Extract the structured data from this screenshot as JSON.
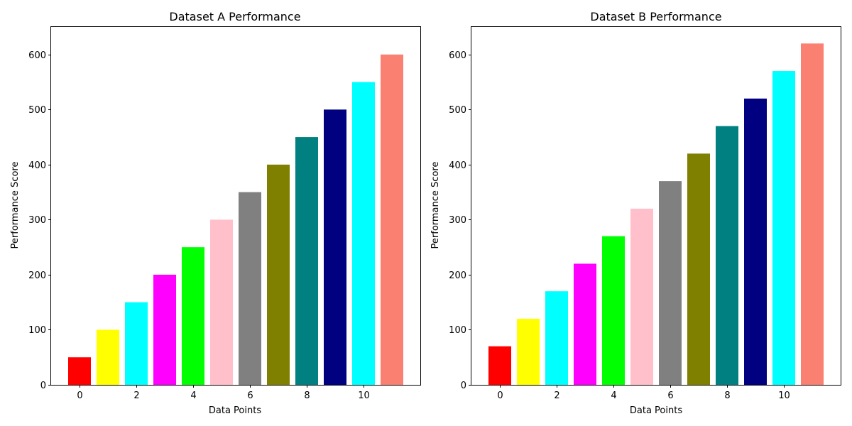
{
  "chart_data": [
    {
      "type": "bar",
      "title": "Dataset A Performance",
      "xlabel": "Data Points",
      "ylabel": "Performance Score",
      "x": [
        0,
        1,
        2,
        3,
        4,
        5,
        6,
        7,
        8,
        9,
        10,
        11
      ],
      "values": [
        50,
        100,
        150,
        200,
        250,
        300,
        350,
        400,
        450,
        500,
        550,
        600
      ],
      "colors": [
        "#ff0000",
        "#ffff00",
        "#00ffff",
        "#ff00ff",
        "#00ff00",
        "#ffc0cb",
        "#808080",
        "#808000",
        "#008080",
        "#000080",
        "#00ffff",
        "#fa8072"
      ],
      "xticks": [
        0,
        2,
        4,
        6,
        8,
        10
      ],
      "yticks": [
        0,
        100,
        200,
        300,
        400,
        500,
        600
      ],
      "xlim": [
        -1,
        12
      ],
      "ylim": [
        0,
        650
      ],
      "grid": false,
      "legend": "none"
    },
    {
      "type": "bar",
      "title": "Dataset B Performance",
      "xlabel": "Data Points",
      "ylabel": "Performance Score",
      "x": [
        0,
        1,
        2,
        3,
        4,
        5,
        6,
        7,
        8,
        9,
        10,
        11
      ],
      "values": [
        70,
        120,
        170,
        220,
        270,
        320,
        370,
        420,
        470,
        520,
        570,
        620
      ],
      "colors": [
        "#ff0000",
        "#ffff00",
        "#00ffff",
        "#ff00ff",
        "#00ff00",
        "#ffc0cb",
        "#808080",
        "#808000",
        "#008080",
        "#000080",
        "#00ffff",
        "#fa8072"
      ],
      "xticks": [
        0,
        2,
        4,
        6,
        8,
        10
      ],
      "yticks": [
        0,
        100,
        200,
        300,
        400,
        500,
        600
      ],
      "xlim": [
        -1,
        12
      ],
      "ylim": [
        0,
        650
      ],
      "grid": false,
      "legend": "none"
    }
  ]
}
